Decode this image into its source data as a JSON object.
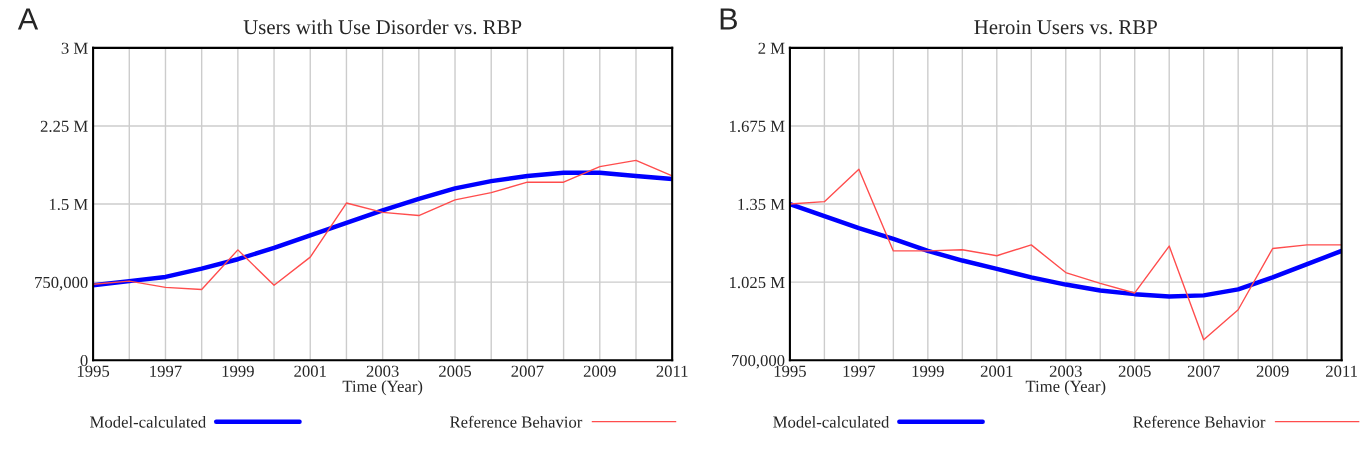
{
  "chart_data": [
    {
      "type": "line",
      "title": "Users with Use Disorder vs. RBP",
      "xlabel": "Time (Year)",
      "annotations": [
        "A"
      ],
      "x": [
        1995,
        1996,
        1997,
        1998,
        1999,
        2000,
        2001,
        2002,
        2003,
        2004,
        2005,
        2006,
        2007,
        2008,
        2009,
        2010,
        2011
      ],
      "series": [
        {
          "name": "Model-calculated",
          "color": "#0000ff",
          "values": [
            720000,
            760000,
            800000,
            880000,
            970000,
            1080000,
            1200000,
            1320000,
            1440000,
            1550000,
            1650000,
            1720000,
            1770000,
            1800000,
            1800000,
            1770000,
            1740000
          ]
        },
        {
          "name": "Reference Behavior",
          "color": "#ff4d4d",
          "values": [
            730000,
            760000,
            700000,
            680000,
            1060000,
            720000,
            990000,
            1510000,
            1420000,
            1390000,
            1540000,
            1610000,
            1710000,
            1710000,
            1860000,
            1920000,
            1770000
          ]
        }
      ],
      "xlim": [
        1995,
        2011
      ],
      "xticks": [
        1995,
        {
          "value": 1996,
          "label": null
        },
        1997,
        {
          "value": 1998,
          "label": null
        },
        1999,
        {
          "value": 2000,
          "label": null
        },
        2001,
        {
          "value": 2002,
          "label": null
        },
        2003,
        {
          "value": 2004,
          "label": null
        },
        2005,
        {
          "value": 2006,
          "label": null
        },
        2007,
        {
          "value": 2008,
          "label": null
        },
        2009,
        {
          "value": 2010,
          "label": null
        },
        2011
      ],
      "ylim": [
        0,
        3000000
      ],
      "yticks": [
        0,
        {
          "value": 750000,
          "label": "750,000"
        },
        {
          "value": 1500000,
          "label": "1.5 M"
        },
        {
          "value": 2250000,
          "label": "2.25 M"
        },
        {
          "value": 3000000,
          "label": "3 M"
        }
      ],
      "grid": true,
      "legend": "bottom",
      "line_style": "solid",
      "marker": "none"
    },
    {
      "type": "line",
      "title": "Heroin Users vs. RBP",
      "xlabel": "Time (Year)",
      "annotations": [
        "B"
      ],
      "x": [
        1995,
        1996,
        1997,
        1998,
        1999,
        2000,
        2001,
        2002,
        2003,
        2004,
        2005,
        2006,
        2007,
        2008,
        2009,
        2010,
        2011
      ],
      "series": [
        {
          "name": "Model-calculated",
          "color": "#0000ff",
          "values": [
            1350000,
            1300000,
            1250000,
            1205000,
            1155000,
            1115000,
            1080000,
            1045000,
            1015000,
            990000,
            975000,
            965000,
            970000,
            995000,
            1045000,
            1100000,
            1155000
          ]
        },
        {
          "name": "Reference Behavior",
          "color": "#ff4d4d",
          "values": [
            1350000,
            1360000,
            1495000,
            1155000,
            1155000,
            1160000,
            1135000,
            1180000,
            1065000,
            1020000,
            980000,
            1175000,
            785000,
            910000,
            1165000,
            1180000,
            1180000
          ]
        }
      ],
      "xlim": [
        1995,
        2011
      ],
      "xticks": [
        1995,
        {
          "value": 1996,
          "label": null
        },
        1997,
        {
          "value": 1998,
          "label": null
        },
        1999,
        {
          "value": 2000,
          "label": null
        },
        2001,
        {
          "value": 2002,
          "label": null
        },
        2003,
        {
          "value": 2004,
          "label": null
        },
        2005,
        {
          "value": 2006,
          "label": null
        },
        2007,
        {
          "value": 2008,
          "label": null
        },
        2009,
        {
          "value": 2010,
          "label": null
        },
        2011
      ],
      "ylim": [
        700000,
        2000000
      ],
      "yticks": [
        {
          "value": 700000,
          "label": "700,000"
        },
        {
          "value": 1025000,
          "label": "1.025 M"
        },
        {
          "value": 1350000,
          "label": "1.35 M"
        },
        {
          "value": 1675000,
          "label": "1.675 M"
        },
        {
          "value": 2000000,
          "label": "2 M"
        }
      ],
      "grid": true,
      "legend": "bottom",
      "line_style": "solid",
      "marker": "none"
    }
  ]
}
